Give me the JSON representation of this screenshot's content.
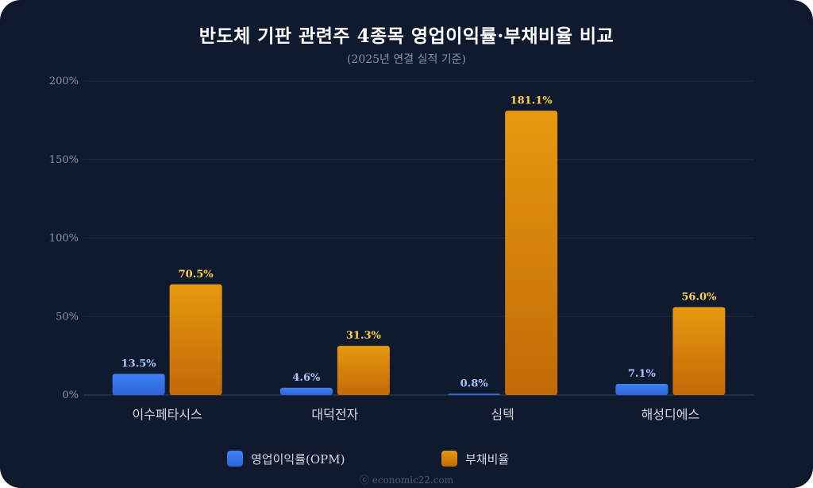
{
  "colors": {
    "background": "#0f1a2e",
    "opm_top": "#3b82f6",
    "opm_bottom": "#2f64d8",
    "debt_top": "#e8980e",
    "debt_bottom": "#c26a08",
    "grid": "#1f2a40",
    "label_opm": "#a9c6ff",
    "label_debt": "#ffd24a"
  },
  "chart_data": {
    "type": "bar",
    "title": "반도체 기판 관련주 4종목 영업이익률·부채비율 비교",
    "subtitle": "(2025년 연결 실적 기준)",
    "categories": [
      "이수페타시스",
      "대덕전자",
      "심텍",
      "해성디에스"
    ],
    "series": [
      {
        "name": "영업이익률(OPM)",
        "values": [
          13.5,
          4.6,
          0.8,
          7.1
        ],
        "labels": [
          "13.5%",
          "4.6%",
          "0.8%",
          "7.1%"
        ]
      },
      {
        "name": "부채비율",
        "values": [
          70.5,
          31.3,
          181.1,
          56.0
        ],
        "labels": [
          "70.5%",
          "31.3%",
          "181.1%",
          "56.0%"
        ]
      }
    ],
    "ylim": [
      0,
      200
    ],
    "yticks": [
      0,
      50,
      100,
      150,
      200
    ],
    "ytick_labels": [
      "0%",
      "50%",
      "100%",
      "150%",
      "200%"
    ],
    "grid": true,
    "legend_position": "bottom"
  },
  "footer": "ⓒ economic22.com"
}
